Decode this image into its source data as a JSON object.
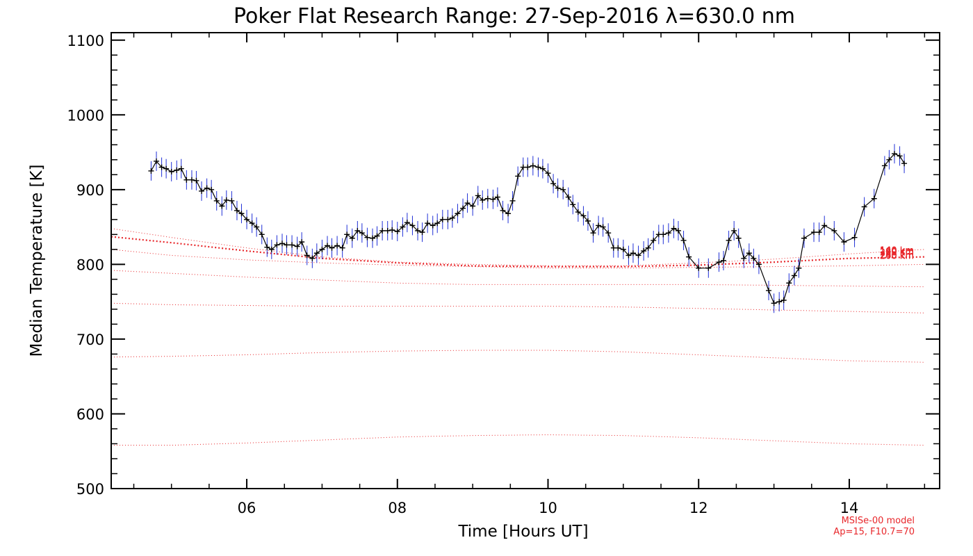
{
  "chart_data": {
    "type": "line",
    "title": "Poker Flat Research Range: 27-Sep-2016 λ=630.0 nm",
    "xlabel": "Time [Hours UT]",
    "ylabel": "Median Temperature [K]",
    "xlim": [
      4.2,
      15.2
    ],
    "ylim": [
      500,
      1110
    ],
    "x_ticks": [
      6,
      8,
      10,
      12,
      14
    ],
    "x_tick_labels": [
      "06",
      "08",
      "10",
      "12",
      "14"
    ],
    "y_ticks": [
      500,
      600,
      700,
      800,
      900,
      1000,
      1100
    ],
    "y_tick_labels": [
      "500",
      "600",
      "700",
      "800",
      "900",
      "1000",
      "1100"
    ],
    "grid": false,
    "series": [
      {
        "kind": "measurement",
        "color": "#000000",
        "error_bar_color": "#1f2fd6",
        "error": 13,
        "points": [
          [
            4.73,
            925
          ],
          [
            4.8,
            938
          ],
          [
            4.87,
            930
          ],
          [
            4.93,
            928
          ],
          [
            5.0,
            924
          ],
          [
            5.07,
            926
          ],
          [
            5.13,
            928
          ],
          [
            5.2,
            913
          ],
          [
            5.27,
            913
          ],
          [
            5.33,
            912
          ],
          [
            5.4,
            898
          ],
          [
            5.47,
            902
          ],
          [
            5.53,
            900
          ],
          [
            5.6,
            885
          ],
          [
            5.67,
            878
          ],
          [
            5.73,
            886
          ],
          [
            5.8,
            885
          ],
          [
            5.87,
            872
          ],
          [
            5.93,
            868
          ],
          [
            6.0,
            860
          ],
          [
            6.07,
            855
          ],
          [
            6.13,
            850
          ],
          [
            6.2,
            840
          ],
          [
            6.27,
            823
          ],
          [
            6.33,
            820
          ],
          [
            6.4,
            826
          ],
          [
            6.47,
            828
          ],
          [
            6.53,
            826
          ],
          [
            6.6,
            826
          ],
          [
            6.67,
            824
          ],
          [
            6.73,
            830
          ],
          [
            6.8,
            812
          ],
          [
            6.87,
            808
          ],
          [
            6.93,
            815
          ],
          [
            7.0,
            820
          ],
          [
            7.07,
            825
          ],
          [
            7.13,
            822
          ],
          [
            7.2,
            825
          ],
          [
            7.27,
            822
          ],
          [
            7.33,
            840
          ],
          [
            7.4,
            835
          ],
          [
            7.47,
            845
          ],
          [
            7.53,
            842
          ],
          [
            7.6,
            836
          ],
          [
            7.67,
            835
          ],
          [
            7.73,
            838
          ],
          [
            7.8,
            845
          ],
          [
            7.87,
            845
          ],
          [
            7.93,
            846
          ],
          [
            8.0,
            844
          ],
          [
            8.07,
            850
          ],
          [
            8.13,
            856
          ],
          [
            8.2,
            852
          ],
          [
            8.27,
            845
          ],
          [
            8.33,
            843
          ],
          [
            8.4,
            855
          ],
          [
            8.47,
            852
          ],
          [
            8.53,
            855
          ],
          [
            8.6,
            860
          ],
          [
            8.67,
            860
          ],
          [
            8.73,
            862
          ],
          [
            8.8,
            868
          ],
          [
            8.87,
            875
          ],
          [
            8.93,
            882
          ],
          [
            9.0,
            878
          ],
          [
            9.07,
            892
          ],
          [
            9.13,
            886
          ],
          [
            9.2,
            888
          ],
          [
            9.27,
            887
          ],
          [
            9.33,
            890
          ],
          [
            9.4,
            872
          ],
          [
            9.47,
            868
          ],
          [
            9.53,
            885
          ],
          [
            9.6,
            918
          ],
          [
            9.67,
            930
          ],
          [
            9.73,
            930
          ],
          [
            9.8,
            932
          ],
          [
            9.87,
            930
          ],
          [
            9.93,
            928
          ],
          [
            10.0,
            922
          ],
          [
            10.07,
            908
          ],
          [
            10.13,
            902
          ],
          [
            10.2,
            900
          ],
          [
            10.27,
            890
          ],
          [
            10.33,
            880
          ],
          [
            10.4,
            870
          ],
          [
            10.47,
            865
          ],
          [
            10.53,
            858
          ],
          [
            10.6,
            842
          ],
          [
            10.67,
            852
          ],
          [
            10.73,
            850
          ],
          [
            10.8,
            842
          ],
          [
            10.87,
            822
          ],
          [
            10.93,
            822
          ],
          [
            11.0,
            820
          ],
          [
            11.07,
            812
          ],
          [
            11.13,
            815
          ],
          [
            11.2,
            812
          ],
          [
            11.27,
            818
          ],
          [
            11.33,
            822
          ],
          [
            11.4,
            832
          ],
          [
            11.47,
            840
          ],
          [
            11.53,
            840
          ],
          [
            11.6,
            842
          ],
          [
            11.67,
            848
          ],
          [
            11.73,
            845
          ],
          [
            11.8,
            832
          ],
          [
            11.87,
            810
          ],
          [
            12.0,
            795
          ],
          [
            12.13,
            795
          ],
          [
            12.27,
            803
          ],
          [
            12.33,
            805
          ],
          [
            12.4,
            832
          ],
          [
            12.47,
            845
          ],
          [
            12.53,
            835
          ],
          [
            12.6,
            808
          ],
          [
            12.67,
            815
          ],
          [
            12.73,
            808
          ],
          [
            12.8,
            800
          ],
          [
            12.93,
            765
          ],
          [
            13.0,
            748
          ],
          [
            13.07,
            750
          ],
          [
            13.13,
            752
          ],
          [
            13.2,
            775
          ],
          [
            13.27,
            785
          ],
          [
            13.33,
            795
          ],
          [
            13.4,
            835
          ],
          [
            13.53,
            843
          ],
          [
            13.6,
            843
          ],
          [
            13.67,
            852
          ],
          [
            13.8,
            845
          ],
          [
            13.93,
            830
          ],
          [
            14.07,
            836
          ],
          [
            14.2,
            877
          ],
          [
            14.33,
            888
          ],
          [
            14.47,
            932
          ],
          [
            14.53,
            940
          ],
          [
            14.6,
            948
          ],
          [
            14.67,
            945
          ],
          [
            14.73,
            935
          ]
        ]
      }
    ],
    "model_curves": [
      {
        "label": "260 km",
        "color": "#e8262a",
        "x": [
          4.2,
          5,
          6,
          7,
          8,
          9,
          10,
          11,
          12,
          13,
          14,
          15
        ],
        "y": [
          848,
          836,
          822,
          810,
          803,
          800,
          798,
          798,
          802,
          807,
          814,
          820
        ]
      },
      {
        "label": "240 km",
        "color": "#e8262a",
        "emphasis": true,
        "x": [
          4.2,
          5,
          6,
          7,
          8,
          9,
          10,
          11,
          12,
          13,
          14,
          15
        ],
        "y": [
          837,
          829,
          818,
          808,
          802,
          798,
          797,
          797,
          799,
          803,
          808,
          810
        ]
      },
      {
        "label": "220 km",
        "color": "#e8262a",
        "x": [
          4.2,
          5,
          6,
          7,
          8,
          9,
          10,
          11,
          12,
          13,
          14,
          15
        ],
        "y": [
          820,
          812,
          806,
          802,
          799,
          797,
          795,
          795,
          796,
          797,
          798,
          800
        ]
      },
      {
        "label": "200 km",
        "color": "#e8262a",
        "x": [
          4.2,
          5,
          6,
          7,
          8,
          9,
          10,
          11,
          12,
          13,
          14,
          15
        ],
        "y": [
          792,
          788,
          783,
          779,
          775,
          773,
          773,
          773,
          773,
          772,
          771,
          770
        ]
      },
      {
        "label": "180 km",
        "color": "#e8262a",
        "x": [
          4.2,
          5,
          6,
          7,
          8,
          9,
          10,
          11,
          12,
          13,
          14,
          15
        ],
        "y": [
          748,
          746,
          745,
          744,
          744,
          744,
          744,
          743,
          741,
          739,
          737,
          735
        ]
      },
      {
        "label": "160 km",
        "color": "#e8262a",
        "x": [
          4.2,
          5,
          6,
          7,
          8,
          9,
          10,
          11,
          12,
          13,
          14,
          15
        ],
        "y": [
          676,
          677,
          679,
          682,
          684,
          685,
          685,
          683,
          679,
          675,
          671,
          669
        ]
      },
      {
        "label": "140 km",
        "color": "#e8262a",
        "x": [
          4.2,
          5,
          6,
          7,
          8,
          9,
          10,
          11,
          12,
          13,
          14,
          15
        ],
        "y": [
          558,
          558,
          561,
          565,
          569,
          571,
          572,
          571,
          568,
          564,
          560,
          558
        ]
      }
    ],
    "notes": [
      "MSISe-00 model",
      "Ap=15, F10.7=70"
    ]
  }
}
